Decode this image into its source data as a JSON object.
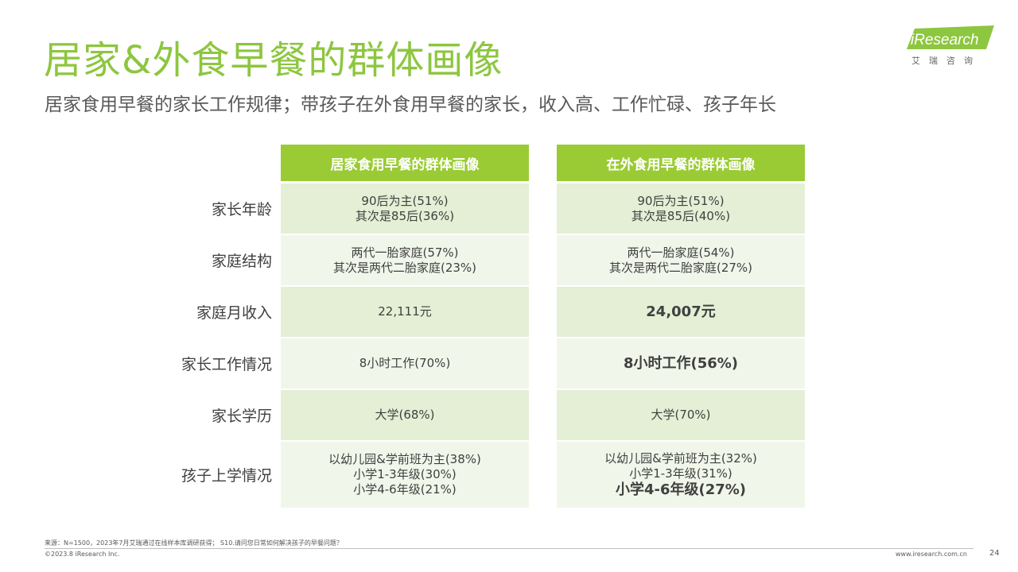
{
  "header": {
    "title": "居家&外食早餐的群体画像",
    "subtitle": "居家食用早餐的家长工作规律；带孩子在外食用早餐的家长，收入高、工作忙碌、孩子年长"
  },
  "logo": {
    "brand": "iResearch",
    "chinese": "艾瑞咨询"
  },
  "table": {
    "columns": [
      "居家食用早餐的群体画像",
      "在外食用早餐的群体画像"
    ],
    "rows": [
      {
        "label": "家长年龄",
        "home": [
          "90后为主(51%)",
          "其次是85后(36%)"
        ],
        "out": [
          "90后为主(51%)",
          "其次是85后(40%)"
        ]
      },
      {
        "label": "家庭结构",
        "home": [
          "两代一胎家庭(57%)",
          "其次是两代二胎家庭(23%)"
        ],
        "out": [
          "两代一胎家庭(54%)",
          "其次是两代二胎家庭(27%)"
        ]
      },
      {
        "label": "家庭月收入",
        "home": [
          "22,111元"
        ],
        "out": [
          "24,007元"
        ]
      },
      {
        "label": "家长工作情况",
        "home": [
          "8小时工作(70%)"
        ],
        "out": [
          "8小时工作(56%)"
        ]
      },
      {
        "label": "家长学历",
        "home": [
          "大学(68%)"
        ],
        "out": [
          "大学(70%)"
        ]
      },
      {
        "label": "孩子上学情况",
        "home": [
          "以幼儿园&学前班为主(38%)",
          "小学1-3年级(30%)",
          "小学4-6年级(21%)"
        ],
        "out": [
          "以幼儿园&学前班为主(32%)",
          "小学1-3年级(31%)",
          "小学4-6年级(27%)"
        ]
      }
    ]
  },
  "footer": {
    "source": "来源：N=1500，2023年7月艾瑞通过在线样本库调研获得； S10.请问您日常如何解决孩子的早餐问题？",
    "copyright": "©2023.8 iResearch Inc.",
    "website": "www.iresearch.com.cn",
    "page": "24"
  },
  "colors": {
    "accent": "#8dc63f",
    "header_bg": "#9acb34",
    "row_dark": "#e4efd5",
    "row_light": "#f1f6ea"
  }
}
